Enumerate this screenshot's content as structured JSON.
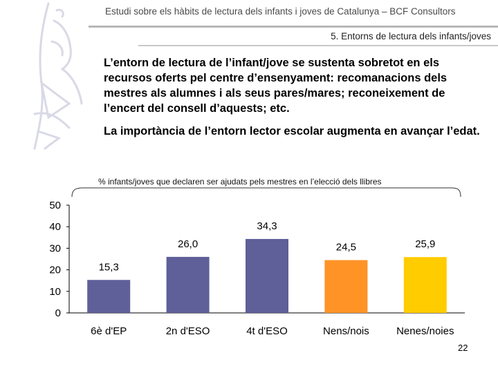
{
  "header": {
    "title": "Estudi sobre els hàbits de lectura dels infants i joves de Catalunya – BCF Consultors",
    "section": "5. Entorns de lectura dels infants/joves"
  },
  "body": {
    "paragraph1": "L’entorn de lectura de l’infant/jove se sustenta sobretot en els recursos oferts pel centre d’ensenyament: recomanacions dels mestres als alumnes i als seus pares/mares; reconeixement de l’encert del consell d’aquests; etc.",
    "paragraph2": "La importància de l’entorn lector escolar augmenta en avançar l’edat."
  },
  "chart_data": {
    "type": "bar",
    "title": "% infants/joves que declaren ser ajudats pels mestres en l’elecció dels llibres",
    "categories": [
      "6è d'EP",
      "2n d'ESO",
      "4t d'ESO",
      "Nens/nois",
      "Nenes/noies"
    ],
    "values": [
      15.3,
      26.0,
      34.3,
      24.5,
      25.9
    ],
    "value_labels": [
      "15,3",
      "26,0",
      "34,3",
      "24,5",
      "25,9"
    ],
    "colors": [
      "#5f5f99",
      "#5f5f99",
      "#5f5f99",
      "#ff9326",
      "#ffcc00"
    ],
    "ylim": [
      0,
      50
    ],
    "yticks": [
      0,
      10,
      20,
      30,
      40,
      50
    ],
    "xlabel": "",
    "ylabel": "",
    "grid": false
  },
  "page_number": "22"
}
